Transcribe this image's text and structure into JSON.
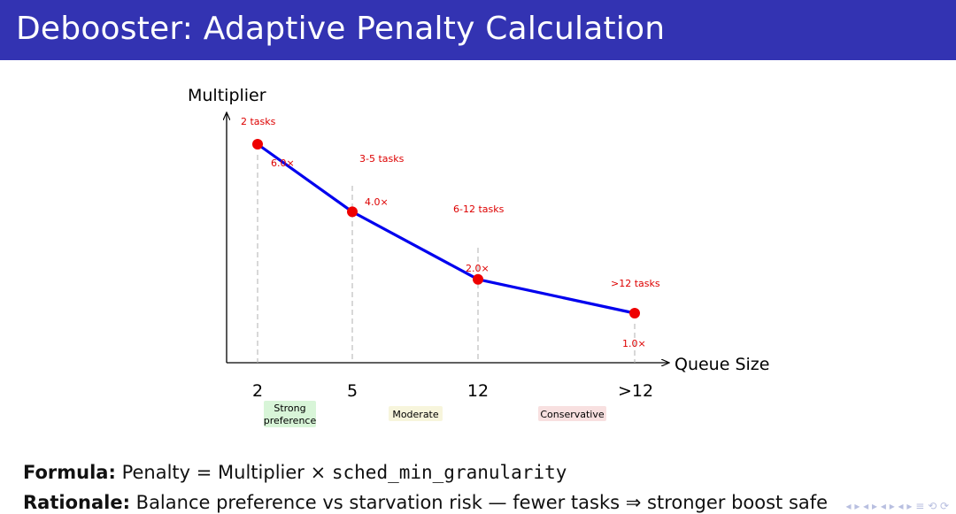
{
  "slide": {
    "title": "Debooster: Adaptive Penalty Calculation"
  },
  "chart_data": {
    "type": "line",
    "xlabel": "Queue Size",
    "ylabel": "Multiplier",
    "points": [
      {
        "label": "2 tasks",
        "x_tick": "2",
        "multiplier_label": "6.0×",
        "value": 6.0
      },
      {
        "label": "3-5 tasks",
        "x_tick": "5",
        "multiplier_label": "4.0×",
        "value": 4.0
      },
      {
        "label": "6-12 tasks",
        "x_tick": "12",
        "multiplier_label": "2.0×",
        "value": 2.0
      },
      {
        "label": ">12 tasks",
        "x_tick": ">12",
        "multiplier_label": "1.0×",
        "value": 1.0
      }
    ],
    "line_color": "#0000ee",
    "point_color": "#ee0000"
  },
  "categories": [
    {
      "label": "Strong preference",
      "line1": "Strong",
      "line2": "preference",
      "color": "#d8f5d8"
    },
    {
      "label": "Moderate",
      "color": "#f7f5dc"
    },
    {
      "label": "Conservative",
      "color": "#f8e0e0"
    }
  ],
  "footer": {
    "formula_label": "Formula:",
    "formula_text": "Penalty = Multiplier × ",
    "formula_code": "sched_min_granularity",
    "rationale_label": "Rationale:",
    "rationale_text": "Balance preference vs starvation risk — fewer tasks ⇒ stronger boost safe"
  },
  "nav": {
    "glyphs": "◂ ▸ ◂ ▸ ◂ ▸ ◂ ▸ ≡ ⟲ ⟳"
  }
}
